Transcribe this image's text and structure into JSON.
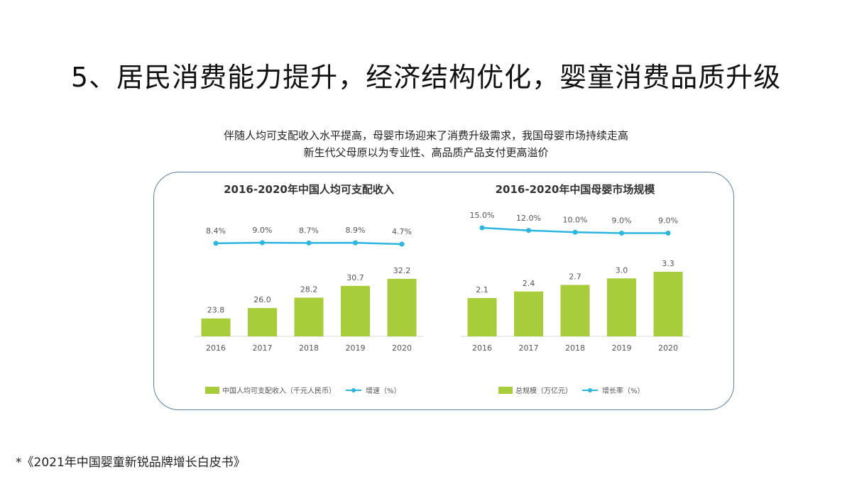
{
  "slide": {
    "title": "5、居民消费能力提升，经济结构优化，婴童消费品质升级",
    "subtitle_line1": "伴随人均可支配收入水平提高，母婴市场迎来了消费升级需求，我国母婴市场持续走高",
    "subtitle_line2": "新生代父母原以为专业性、高品质产品支付更高溢价",
    "source": "*《2021年中国婴童新锐品牌增长白皮书》"
  },
  "colors": {
    "bar": "#a8cd3a",
    "line": "#2cb5e0",
    "border": "#5a7fa6",
    "axis": "#d9d9d9",
    "text": "#555555"
  },
  "chart_data": [
    {
      "type": "bar+line",
      "title": "2016-2020年中国人均可支配收入",
      "categories": [
        "2016",
        "2017",
        "2018",
        "2019",
        "2020"
      ],
      "series": [
        {
          "name": "中国人均可支配收入（千元人民币）",
          "kind": "bar",
          "values": [
            23.8,
            26.0,
            28.2,
            30.7,
            32.2
          ],
          "labels": [
            "23.8",
            "26.0",
            "28.2",
            "30.7",
            "32.2"
          ]
        },
        {
          "name": "增速（%）",
          "kind": "line",
          "values": [
            8.4,
            9.0,
            8.7,
            8.9,
            4.7
          ],
          "labels": [
            "8.4%",
            "9.0%",
            "8.7%",
            "8.9%",
            "4.7%"
          ]
        }
      ],
      "legend_position": "bottom"
    },
    {
      "type": "bar+line",
      "title": "2016-2020年中国母婴市场规模",
      "categories": [
        "2016",
        "2017",
        "2018",
        "2019",
        "2020"
      ],
      "series": [
        {
          "name": "总规模（万亿元）",
          "kind": "bar",
          "values": [
            2.1,
            2.4,
            2.7,
            3.0,
            3.3
          ],
          "labels": [
            "2.1",
            "2.4",
            "2.7",
            "3.0",
            "3.3"
          ]
        },
        {
          "name": "增长率（%）",
          "kind": "line",
          "values": [
            15.0,
            12.0,
            10.0,
            9.0,
            9.0
          ],
          "labels": [
            "15.0%",
            "12.0%",
            "10.0%",
            "9.0%",
            "9.0%"
          ]
        }
      ],
      "legend_position": "bottom"
    }
  ]
}
